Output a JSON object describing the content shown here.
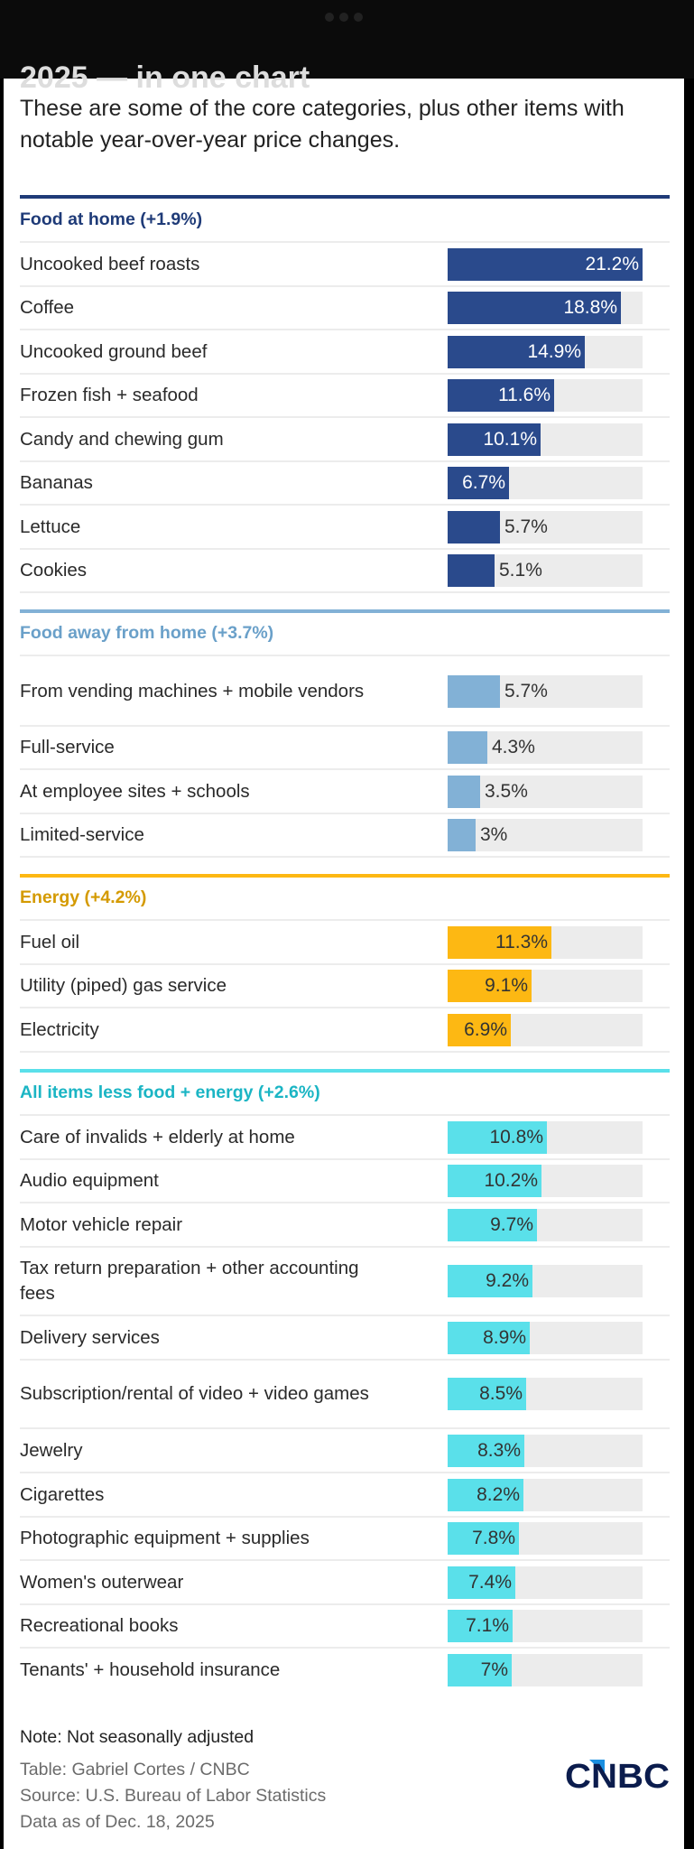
{
  "header": {
    "cut_title": "2025 — in one chart",
    "subtitle": "These are some of the core categories, plus other items with notable year-over-year price changes."
  },
  "colors": {
    "food_at_home": "#2a4a8c",
    "food_at_home_title": "#1f3b78",
    "food_away": "#82b1d6",
    "food_away_title": "#6aa0c9",
    "energy": "#fdb813",
    "energy_title": "#d49a00",
    "core": "#5ae0ea",
    "core_title": "#1bb5c4",
    "track": "#ececec"
  },
  "chart_data": {
    "type": "bar",
    "title": "These are some of the core categories, plus other items with notable year-over-year price changes.",
    "unit": "%",
    "xlim": [
      0,
      21.2
    ],
    "orientation": "horizontal",
    "groups": [
      {
        "name": "Food at home (+1.9%)",
        "color_key": "food_at_home",
        "items": [
          {
            "label": "Uncooked beef roasts",
            "value": 21.2,
            "display": "21.2%"
          },
          {
            "label": "Coffee",
            "value": 18.8,
            "display": "18.8%"
          },
          {
            "label": "Uncooked ground beef",
            "value": 14.9,
            "display": "14.9%"
          },
          {
            "label": "Frozen fish + seafood",
            "value": 11.6,
            "display": "11.6%"
          },
          {
            "label": "Candy and chewing gum",
            "value": 10.1,
            "display": "10.1%"
          },
          {
            "label": "Bananas",
            "value": 6.7,
            "display": "6.7%"
          },
          {
            "label": "Lettuce",
            "value": 5.7,
            "display": "5.7%"
          },
          {
            "label": "Cookies",
            "value": 5.1,
            "display": "5.1%"
          }
        ]
      },
      {
        "name": "Food away from home (+3.7%)",
        "color_key": "food_away",
        "items": [
          {
            "label": "From vending machines + mobile vendors",
            "value": 5.7,
            "display": "5.7%"
          },
          {
            "label": "Full-service",
            "value": 4.3,
            "display": "4.3%"
          },
          {
            "label": "At employee sites + schools",
            "value": 3.5,
            "display": "3.5%"
          },
          {
            "label": "Limited-service",
            "value": 3.0,
            "display": "3%"
          }
        ]
      },
      {
        "name": "Energy (+4.2%)",
        "color_key": "energy",
        "items": [
          {
            "label": "Fuel oil",
            "value": 11.3,
            "display": "11.3%"
          },
          {
            "label": "Utility (piped) gas service",
            "value": 9.1,
            "display": "9.1%"
          },
          {
            "label": "Electricity",
            "value": 6.9,
            "display": "6.9%"
          }
        ]
      },
      {
        "name": "All items less food + energy (+2.6%)",
        "color_key": "core",
        "items": [
          {
            "label": "Care of invalids + elderly at home",
            "value": 10.8,
            "display": "10.8%"
          },
          {
            "label": "Audio equipment",
            "value": 10.2,
            "display": "10.2%"
          },
          {
            "label": "Motor vehicle repair",
            "value": 9.7,
            "display": "9.7%"
          },
          {
            "label": "Tax return preparation + other accounting fees",
            "value": 9.2,
            "display": "9.2%"
          },
          {
            "label": "Delivery services",
            "value": 8.9,
            "display": "8.9%"
          },
          {
            "label": "Subscription/rental of video + video games",
            "value": 8.5,
            "display": "8.5%"
          },
          {
            "label": "Jewelry",
            "value": 8.3,
            "display": "8.3%"
          },
          {
            "label": "Cigarettes",
            "value": 8.2,
            "display": "8.2%"
          },
          {
            "label": "Photographic equipment + supplies",
            "value": 7.8,
            "display": "7.8%"
          },
          {
            "label": "Women's outerwear",
            "value": 7.4,
            "display": "7.4%"
          },
          {
            "label": "Recreational books",
            "value": 7.1,
            "display": "7.1%"
          },
          {
            "label": "Tenants' + household insurance",
            "value": 7.0,
            "display": "7%"
          }
        ]
      }
    ]
  },
  "footer": {
    "note": "Note: Not seasonally adjusted",
    "table_credit": "Table: Gabriel Cortes / CNBC",
    "source": "Source: U.S. Bureau of Labor Statistics",
    "data_date": "Data as of Dec. 18, 2025",
    "logo_text": "CNBC"
  }
}
